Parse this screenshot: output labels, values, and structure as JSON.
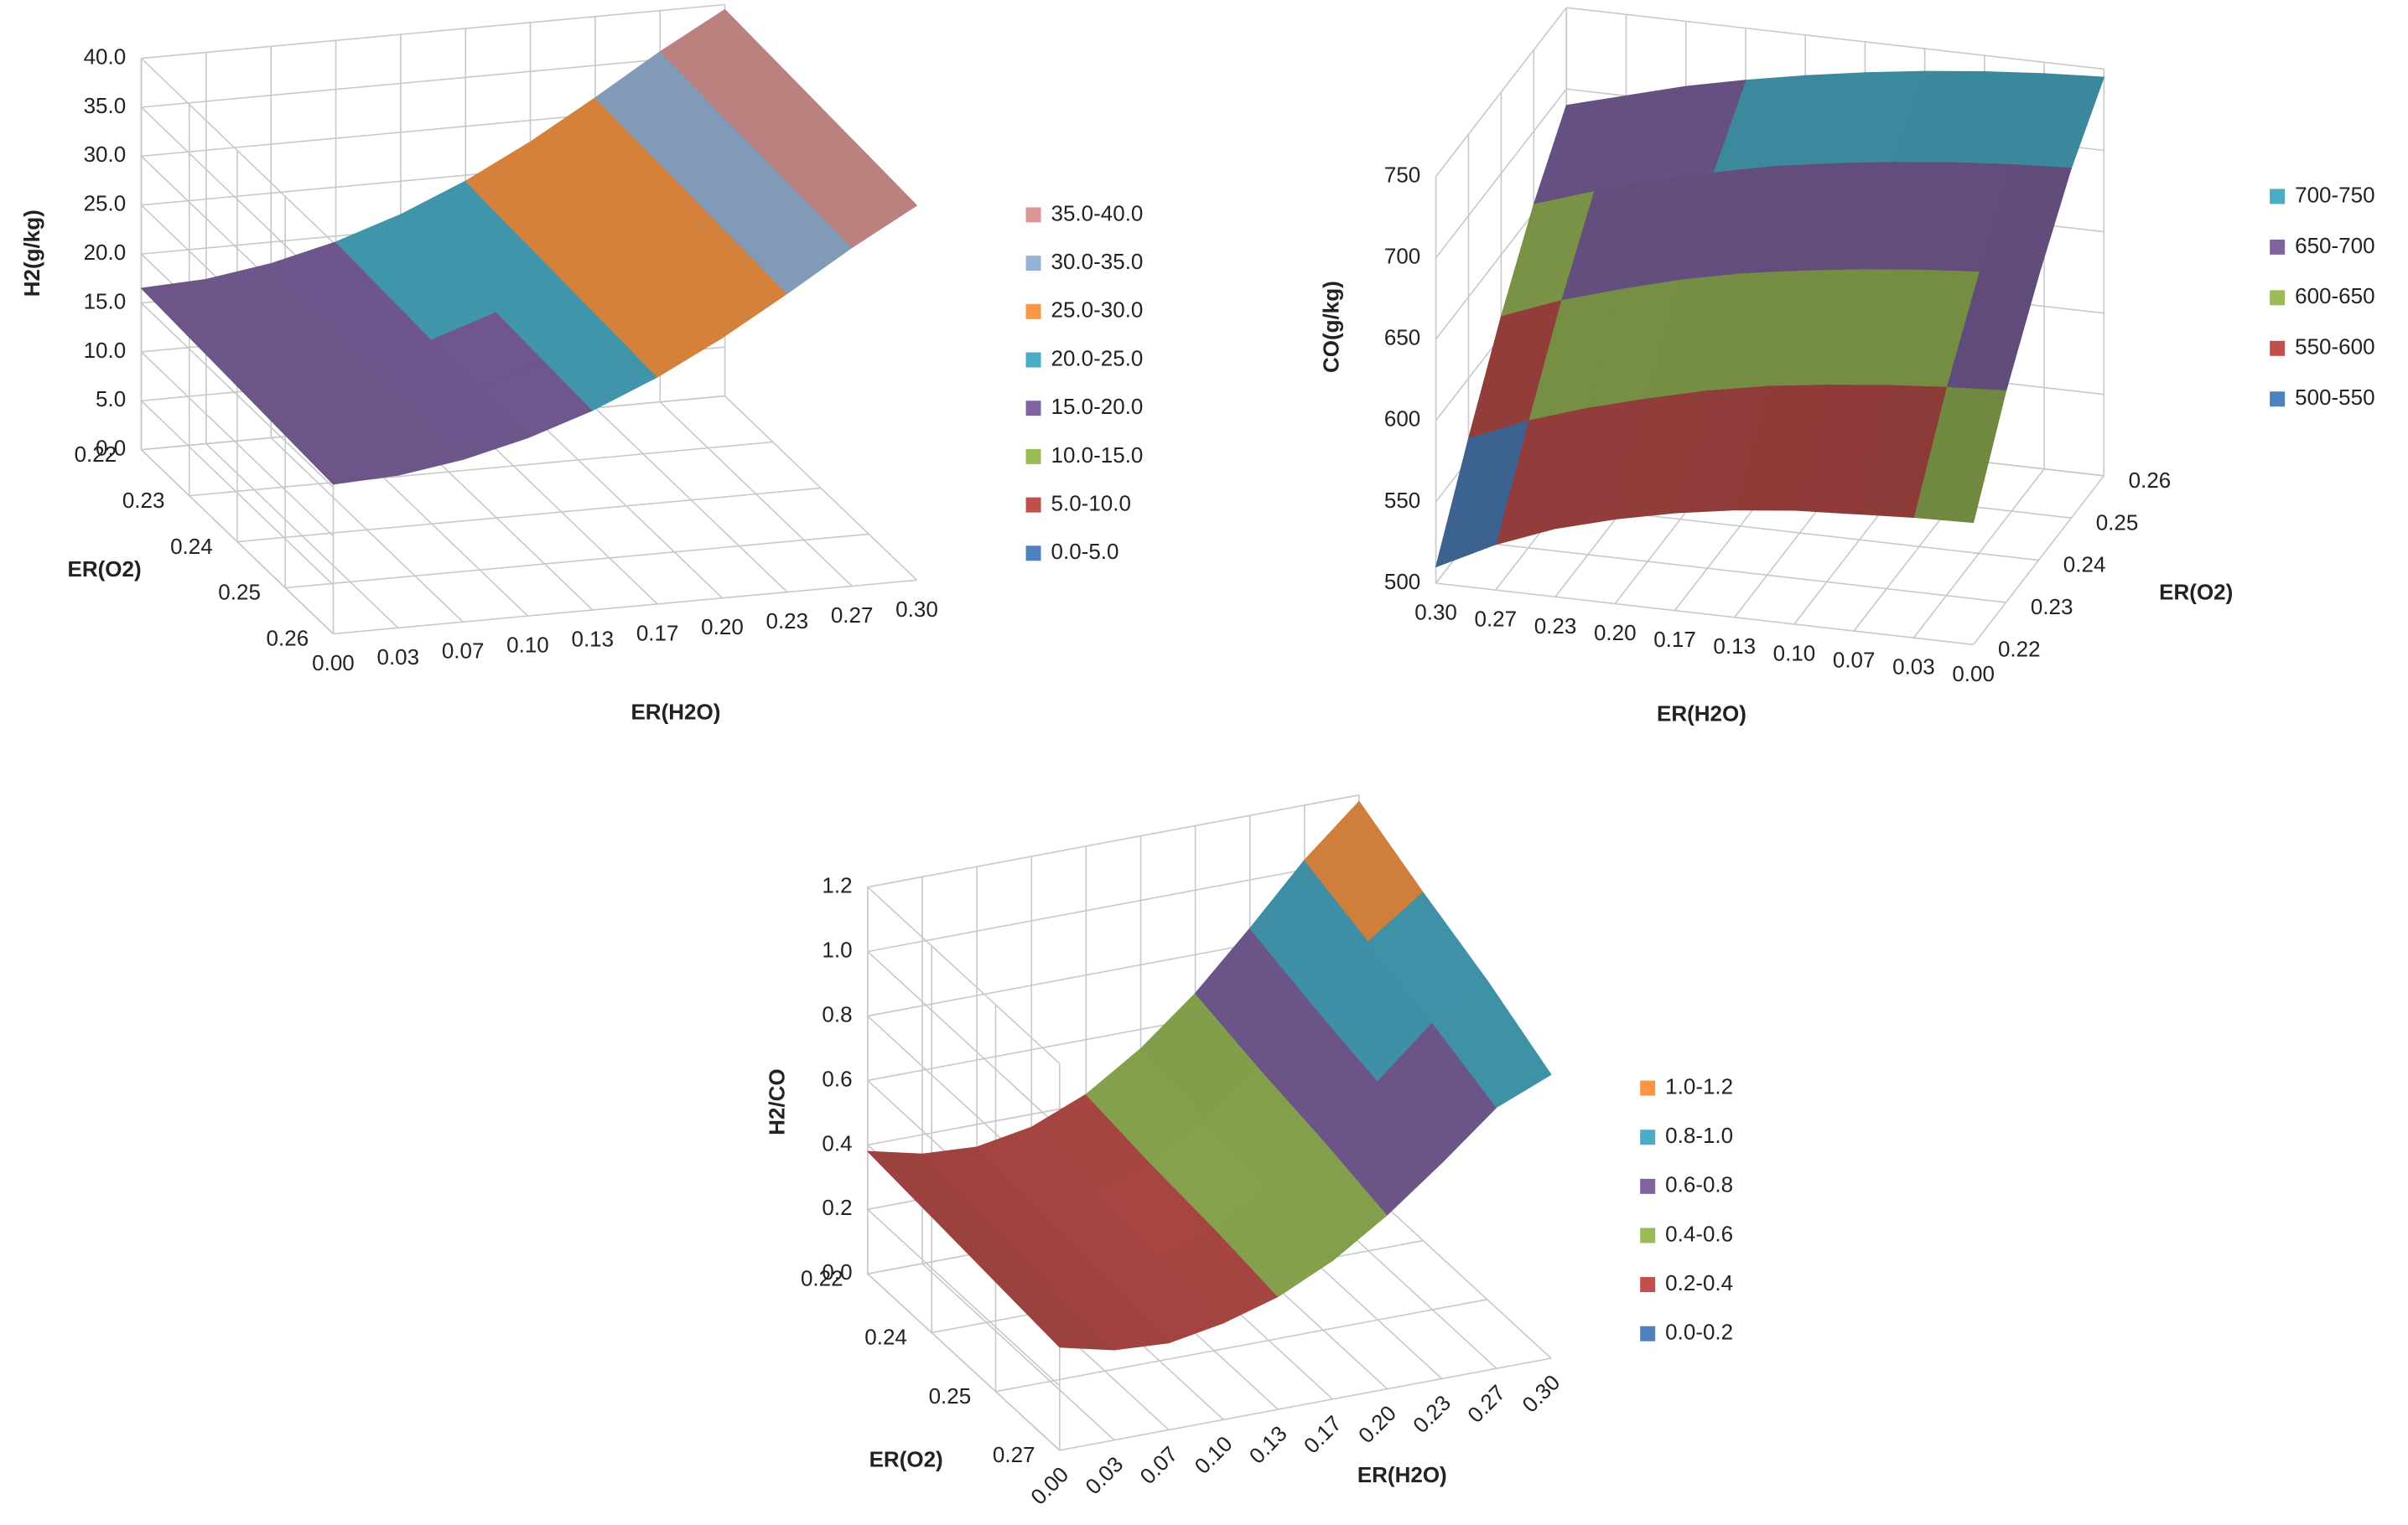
{
  "chart_data": [
    {
      "type": "surface",
      "x_label": "ER(H2O)",
      "y_label": "ER(O2)",
      "z_label": "H2(g/kg)",
      "categories": [
        "0.00",
        "0.03",
        "0.07",
        "0.10",
        "0.13",
        "0.17",
        "0.20",
        "0.23",
        "0.27",
        "0.30"
      ],
      "depth_categories": [
        "0.22",
        "0.23",
        "0.24",
        "0.25",
        "0.26"
      ],
      "values": [
        [
          16.5,
          16.8,
          17.8,
          19.4,
          21.6,
          24.4,
          27.8,
          31.7,
          35.8,
          39.5
        ],
        [
          16.2,
          16.5,
          17.5,
          19.1,
          21.3,
          24.1,
          27.5,
          31.4,
          35.5,
          39.2
        ],
        [
          15.9,
          16.2,
          17.2,
          18.8,
          21.0,
          23.8,
          27.2,
          31.1,
          35.2,
          38.9
        ],
        [
          15.6,
          15.9,
          16.9,
          18.5,
          20.7,
          23.5,
          26.9,
          30.8,
          34.9,
          38.6
        ],
        [
          15.3,
          15.6,
          16.6,
          18.2,
          20.4,
          23.2,
          26.6,
          30.5,
          34.6,
          38.3
        ]
      ],
      "zlim": [
        0,
        40
      ],
      "zticks": [
        {
          "value": 0,
          "label": "0.0"
        },
        {
          "value": 5,
          "label": "5.0"
        },
        {
          "value": 10,
          "label": "10.0"
        },
        {
          "value": 15,
          "label": "15.0"
        },
        {
          "value": 20,
          "label": "20.0"
        },
        {
          "value": 25,
          "label": "25.0"
        },
        {
          "value": 30,
          "label": "30.0"
        },
        {
          "value": 35,
          "label": "35.0"
        },
        {
          "value": 40,
          "label": "40.0"
        }
      ],
      "legend": [
        {
          "name": "35.0-40.0",
          "color": "#d99694",
          "range": [
            35,
            40
          ]
        },
        {
          "name": "30.0-35.0",
          "color": "#95b3d7",
          "range": [
            30,
            35
          ]
        },
        {
          "name": "25.0-30.0",
          "color": "#f79646",
          "range": [
            25,
            30
          ]
        },
        {
          "name": "20.0-25.0",
          "color": "#4bacc6",
          "range": [
            20,
            25
          ]
        },
        {
          "name": "15.0-20.0",
          "color": "#8064a2",
          "range": [
            15,
            20
          ]
        },
        {
          "name": "10.0-15.0",
          "color": "#9bbb59",
          "range": [
            10,
            15
          ]
        },
        {
          "name": "5.0-10.0",
          "color": "#c0504d",
          "range": [
            5,
            10
          ]
        },
        {
          "name": "0.0-5.0",
          "color": "#4f81bd",
          "range": [
            0,
            5
          ]
        }
      ]
    },
    {
      "type": "surface",
      "x_label": "ER(H2O)",
      "y_label": "ER(O2)",
      "z_label": "CO(g/kg)",
      "categories": [
        "0.00",
        "0.03",
        "0.07",
        "0.10",
        "0.13",
        "0.17",
        "0.20",
        "0.23",
        "0.27",
        "0.30"
      ],
      "depth_categories": [
        "0.22",
        "0.23",
        "0.24",
        "0.25",
        "0.26"
      ],
      "values": [
        [
          575,
          574,
          572,
          570,
          566,
          560,
          552,
          542,
          528,
          510
        ],
        [
          630,
          628,
          625,
          621,
          616,
          609,
          600,
          590,
          578,
          563
        ],
        [
          675,
          673,
          670,
          666,
          661,
          655,
          647,
          637,
          626,
          612
        ],
        [
          715,
          713,
          710,
          706,
          701,
          695,
          687,
          678,
          667,
          655
        ],
        [
          745,
          743,
          740,
          736,
          731,
          725,
          718,
          710,
          700,
          690
        ]
      ],
      "zlim": [
        500,
        750
      ],
      "zticks": [
        500,
        550,
        600,
        650,
        700,
        750
      ],
      "legend": [
        {
          "name": "700-750",
          "color": "#4bacc6",
          "range": [
            700,
            750
          ]
        },
        {
          "name": "650-700",
          "color": "#8064a2",
          "range": [
            650,
            700
          ]
        },
        {
          "name": "600-650",
          "color": "#9bbb59",
          "range": [
            600,
            650
          ]
        },
        {
          "name": "550-600",
          "color": "#c0504d",
          "range": [
            550,
            600
          ]
        },
        {
          "name": "500-550",
          "color": "#4f81bd",
          "range": [
            500,
            550
          ]
        }
      ]
    },
    {
      "type": "surface",
      "x_label": "ER(H2O)",
      "y_label": "ER(O2)",
      "z_label": "H2/CO",
      "categories": [
        "0.00",
        "0.03",
        "0.07",
        "0.10",
        "0.13",
        "0.17",
        "0.20",
        "0.23",
        "0.27",
        "0.30"
      ],
      "depth_categories": [
        "0.22",
        "0.24",
        "0.25",
        "0.27"
      ],
      "values": [
        [
          0.38,
          0.34,
          0.33,
          0.36,
          0.43,
          0.54,
          0.68,
          0.85,
          1.03,
          1.18
        ],
        [
          0.36,
          0.32,
          0.31,
          0.34,
          0.4,
          0.5,
          0.63,
          0.79,
          0.96,
          1.08
        ],
        [
          0.34,
          0.3,
          0.29,
          0.32,
          0.38,
          0.47,
          0.59,
          0.74,
          0.89,
          0.99
        ],
        [
          0.32,
          0.28,
          0.27,
          0.3,
          0.35,
          0.43,
          0.54,
          0.67,
          0.81,
          0.88
        ]
      ],
      "zlim": [
        0,
        1.2
      ],
      "zticks": [
        {
          "value": 0,
          "label": "0.0"
        },
        0.2,
        0.4,
        0.6,
        0.8,
        {
          "value": 1,
          "label": "1.0"
        },
        1.2
      ],
      "legend": [
        {
          "name": "1.0-1.2",
          "color": "#f79646",
          "range": [
            1.0,
            1.2
          ]
        },
        {
          "name": "0.8-1.0",
          "color": "#4bacc6",
          "range": [
            0.8,
            1.0
          ]
        },
        {
          "name": "0.6-0.8",
          "color": "#8064a2",
          "range": [
            0.6,
            0.8
          ]
        },
        {
          "name": "0.4-0.6",
          "color": "#9bbb59",
          "range": [
            0.4,
            0.6
          ]
        },
        {
          "name": "0.2-0.4",
          "color": "#c0504d",
          "range": [
            0.2,
            0.4
          ]
        },
        {
          "name": "0.0-0.2",
          "color": "#4f81bd",
          "range": [
            0.0,
            0.2
          ]
        }
      ]
    }
  ]
}
